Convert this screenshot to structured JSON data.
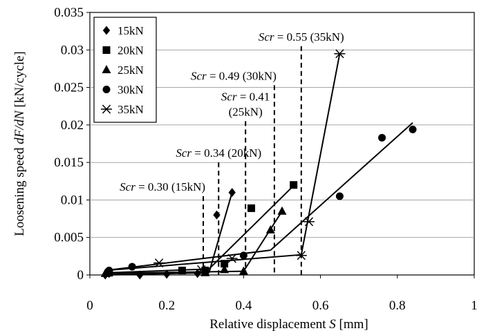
{
  "chart_data": {
    "type": "scatter",
    "title": "",
    "xlabel": "Relative displacement S [mm]",
    "ylabel": "Loosening speed dF/dN [kN/cycle]",
    "xlim": [
      0,
      1
    ],
    "ylim": [
      0,
      0.035
    ],
    "x_ticks": [
      "0",
      "0.2",
      "0.4",
      "0.6",
      "0.8",
      "1"
    ],
    "y_ticks": [
      "0",
      "0.005",
      "0.01",
      "0.015",
      "0.02",
      "0.025",
      "0.03",
      "0.035"
    ],
    "grid": "horizontal",
    "legend_position": "top-left",
    "series": [
      {
        "name": "15kN",
        "marker": "diamond",
        "points": [
          [
            0.04,
            0.0
          ],
          [
            0.05,
            0.0002
          ],
          [
            0.13,
            0.0
          ],
          [
            0.2,
            0.0001
          ],
          [
            0.28,
            0.0002
          ],
          [
            0.33,
            0.008
          ],
          [
            0.37,
            0.011
          ]
        ],
        "lines": [
          [
            [
              0.04,
              0.0
            ],
            [
              0.31,
              0.0003
            ]
          ],
          [
            [
              0.31,
              0.0003
            ],
            [
              0.37,
              0.011
            ]
          ]
        ]
      },
      {
        "name": "20kN",
        "marker": "square",
        "points": [
          [
            0.05,
            0.0003
          ],
          [
            0.24,
            0.0006
          ],
          [
            0.3,
            0.0006
          ],
          [
            0.35,
            0.0015
          ],
          [
            0.42,
            0.0089
          ],
          [
            0.53,
            0.012
          ]
        ],
        "lines": [
          [
            [
              0.05,
              0.0003
            ],
            [
              0.31,
              0.0008
            ]
          ],
          [
            [
              0.31,
              0.0008
            ],
            [
              0.53,
              0.0119
            ]
          ]
        ]
      },
      {
        "name": "25kN",
        "marker": "triangle",
        "points": [
          [
            0.04,
            0.0002
          ],
          [
            0.3,
            0.0003
          ],
          [
            0.35,
            0.0007
          ],
          [
            0.4,
            0.0005
          ],
          [
            0.47,
            0.006
          ],
          [
            0.5,
            0.0085
          ]
        ],
        "lines": [
          [
            [
              0.04,
              0.0002
            ],
            [
              0.4,
              0.0005
            ]
          ],
          [
            [
              0.4,
              0.0005
            ],
            [
              0.5,
              0.0085
            ]
          ]
        ]
      },
      {
        "name": "30kN",
        "marker": "circle",
        "points": [
          [
            0.05,
            0.0006
          ],
          [
            0.11,
            0.0011
          ],
          [
            0.4,
            0.0026
          ],
          [
            0.65,
            0.0105
          ],
          [
            0.76,
            0.0183
          ],
          [
            0.84,
            0.0194
          ]
        ],
        "lines": [
          [
            [
              0.04,
              0.0006
            ],
            [
              0.47,
              0.0033
            ]
          ],
          [
            [
              0.47,
              0.0033
            ],
            [
              0.84,
              0.0203
            ]
          ]
        ]
      },
      {
        "name": "35kN",
        "marker": "asterisk",
        "points": [
          [
            0.18,
            0.0016
          ],
          [
            0.29,
            0.0007
          ],
          [
            0.37,
            0.0022
          ],
          [
            0.55,
            0.0026
          ],
          [
            0.57,
            0.0071
          ],
          [
            0.65,
            0.0295
          ]
        ],
        "lines": [
          [
            [
              0.04,
              0.0006
            ],
            [
              0.55,
              0.0027
            ]
          ],
          [
            [
              0.55,
              0.0027
            ],
            [
              0.65,
              0.0295
            ]
          ]
        ]
      }
    ],
    "thresholds": [
      {
        "label": "Scr = 0.30 (15kN)",
        "scr": "Scr",
        "rest": " = 0.30 (15kN)",
        "x": 0.295,
        "y_top": 0.0105,
        "anchor": "end",
        "lines": 1
      },
      {
        "label": "Scr = 0.34 (20kN)",
        "scr": "Scr",
        "rest": " = 0.34 (20kN)",
        "x": 0.335,
        "y_top": 0.015,
        "anchor": "middle",
        "lines": 1
      },
      {
        "label": "Scr = 0.41 (25kN)",
        "scr": "Scr",
        "rest": " = 0.41",
        "rest2": "(25kN)",
        "x": 0.405,
        "y_top": 0.0205,
        "anchor": "middle",
        "lines": 2
      },
      {
        "label": "Scr = 0.49 (30kN)",
        "scr": "Scr",
        "rest": " = 0.49 (30kN)",
        "x": 0.48,
        "y_top": 0.0253,
        "anchor": "end",
        "lines": 1
      },
      {
        "label": "Scr = 0.55 (35kN)",
        "scr": "Scr",
        "rest": " = 0.55 (35kN)",
        "x": 0.55,
        "y_top": 0.0305,
        "anchor": "middle",
        "lines": 1
      }
    ]
  }
}
